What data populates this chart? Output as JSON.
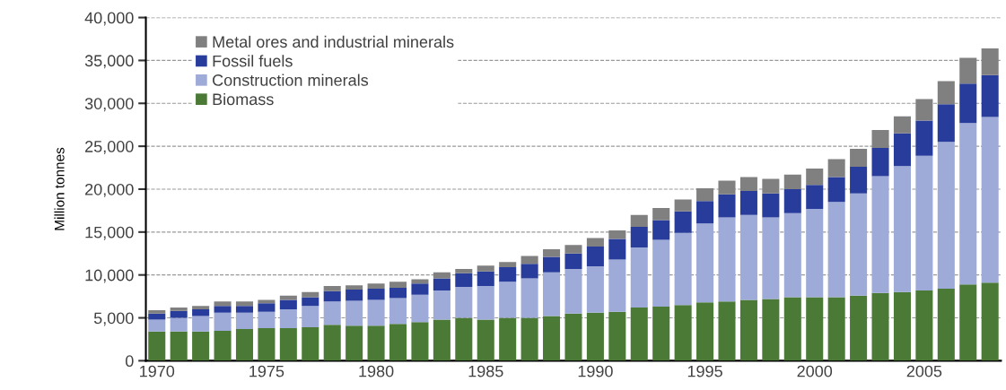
{
  "chart_data": {
    "type": "bar",
    "stacked": true,
    "ylabel": "Million tonnes",
    "x": [
      1970,
      1971,
      1972,
      1973,
      1974,
      1975,
      1976,
      1977,
      1978,
      1979,
      1980,
      1981,
      1982,
      1983,
      1984,
      1985,
      1986,
      1987,
      1988,
      1989,
      1990,
      1991,
      1992,
      1993,
      1994,
      1995,
      1996,
      1997,
      1998,
      1999,
      2000,
      2001,
      2002,
      2003,
      2004,
      2005,
      2006,
      2007,
      2008
    ],
    "series": [
      {
        "name": "Biomass",
        "color": "#4a7a36",
        "values": [
          3400,
          3400,
          3400,
          3500,
          3700,
          3800,
          3800,
          3900,
          4200,
          4100,
          4100,
          4300,
          4500,
          4800,
          5000,
          4800,
          5000,
          5000,
          5200,
          5500,
          5600,
          5700,
          6200,
          6300,
          6500,
          6800,
          6900,
          7100,
          7200,
          7400,
          7400,
          7400,
          7600,
          7900,
          8000,
          8200,
          8400,
          8900,
          9100
        ]
      },
      {
        "name": "Construction minerals",
        "color": "#9eaad8",
        "values": [
          1400,
          1600,
          1800,
          2100,
          1900,
          1900,
          2200,
          2500,
          2700,
          2900,
          3000,
          3000,
          3200,
          3400,
          3600,
          3900,
          4200,
          4600,
          5100,
          5200,
          5400,
          6100,
          7000,
          7800,
          8400,
          9200,
          9800,
          9900,
          9500,
          9800,
          10300,
          11100,
          11900,
          13600,
          14700,
          15700,
          17100,
          18800,
          19300
        ]
      },
      {
        "name": "Fossil fuels",
        "color": "#283c9c",
        "values": [
          700,
          800,
          800,
          800,
          800,
          1000,
          1100,
          1000,
          1200,
          1300,
          1300,
          1200,
          1300,
          1400,
          1600,
          1700,
          1700,
          1700,
          1800,
          1800,
          2300,
          2400,
          2400,
          2300,
          2500,
          2600,
          2700,
          2800,
          2800,
          2800,
          2800,
          2900,
          3100,
          3300,
          3800,
          4100,
          4400,
          4600,
          4900
        ]
      },
      {
        "name": "Metal ores and industrial minerals",
        "color": "#808080",
        "values": [
          400,
          400,
          400,
          500,
          500,
          400,
          500,
          600,
          600,
          500,
          600,
          700,
          500,
          700,
          500,
          700,
          600,
          900,
          900,
          1000,
          1000,
          1000,
          1400,
          1400,
          1400,
          1500,
          1600,
          1600,
          1700,
          1700,
          1900,
          2100,
          2100,
          2100,
          2000,
          2500,
          2700,
          3000,
          3100
        ]
      }
    ],
    "xlim": [
      1969.5,
      2008.5
    ],
    "xticks": [
      1970,
      {
        "value": 1971,
        "label": null
      },
      {
        "value": 1972,
        "label": null
      },
      {
        "value": 1973,
        "label": null
      },
      {
        "value": 1974,
        "label": null
      },
      1975,
      {
        "value": 1976,
        "label": null
      },
      {
        "value": 1977,
        "label": null
      },
      {
        "value": 1978,
        "label": null
      },
      {
        "value": 1979,
        "label": null
      },
      1980,
      {
        "value": 1981,
        "label": null
      },
      {
        "value": 1982,
        "label": null
      },
      {
        "value": 1983,
        "label": null
      },
      {
        "value": 1984,
        "label": null
      },
      1985,
      {
        "value": 1986,
        "label": null
      },
      {
        "value": 1987,
        "label": null
      },
      {
        "value": 1988,
        "label": null
      },
      {
        "value": 1989,
        "label": null
      },
      1990,
      {
        "value": 1991,
        "label": null
      },
      {
        "value": 1992,
        "label": null
      },
      {
        "value": 1993,
        "label": null
      },
      {
        "value": 1994,
        "label": null
      },
      1995,
      {
        "value": 1996,
        "label": null
      },
      {
        "value": 1997,
        "label": null
      },
      {
        "value": 1998,
        "label": null
      },
      {
        "value": 1999,
        "label": null
      },
      2000,
      {
        "value": 2001,
        "label": null
      },
      {
        "value": 2002,
        "label": null
      },
      {
        "value": 2003,
        "label": null
      },
      {
        "value": 2004,
        "label": null
      },
      2005,
      {
        "value": 2006,
        "label": null
      },
      {
        "value": 2007,
        "label": null
      },
      {
        "value": 2008,
        "label": null
      }
    ],
    "ylim": [
      0,
      40000
    ],
    "yticks": [
      0,
      {
        "value": 5000,
        "label": "5,000"
      },
      {
        "value": 10000,
        "label": "10,000"
      },
      {
        "value": 15000,
        "label": "15,000"
      },
      {
        "value": 20000,
        "label": "20,000"
      },
      {
        "value": 25000,
        "label": "25,000"
      },
      {
        "value": 30000,
        "label": "30,000"
      },
      {
        "value": 35000,
        "label": "35,000"
      },
      {
        "value": 40000,
        "label": "40,000"
      }
    ],
    "grid": "y",
    "legend": "top left"
  }
}
